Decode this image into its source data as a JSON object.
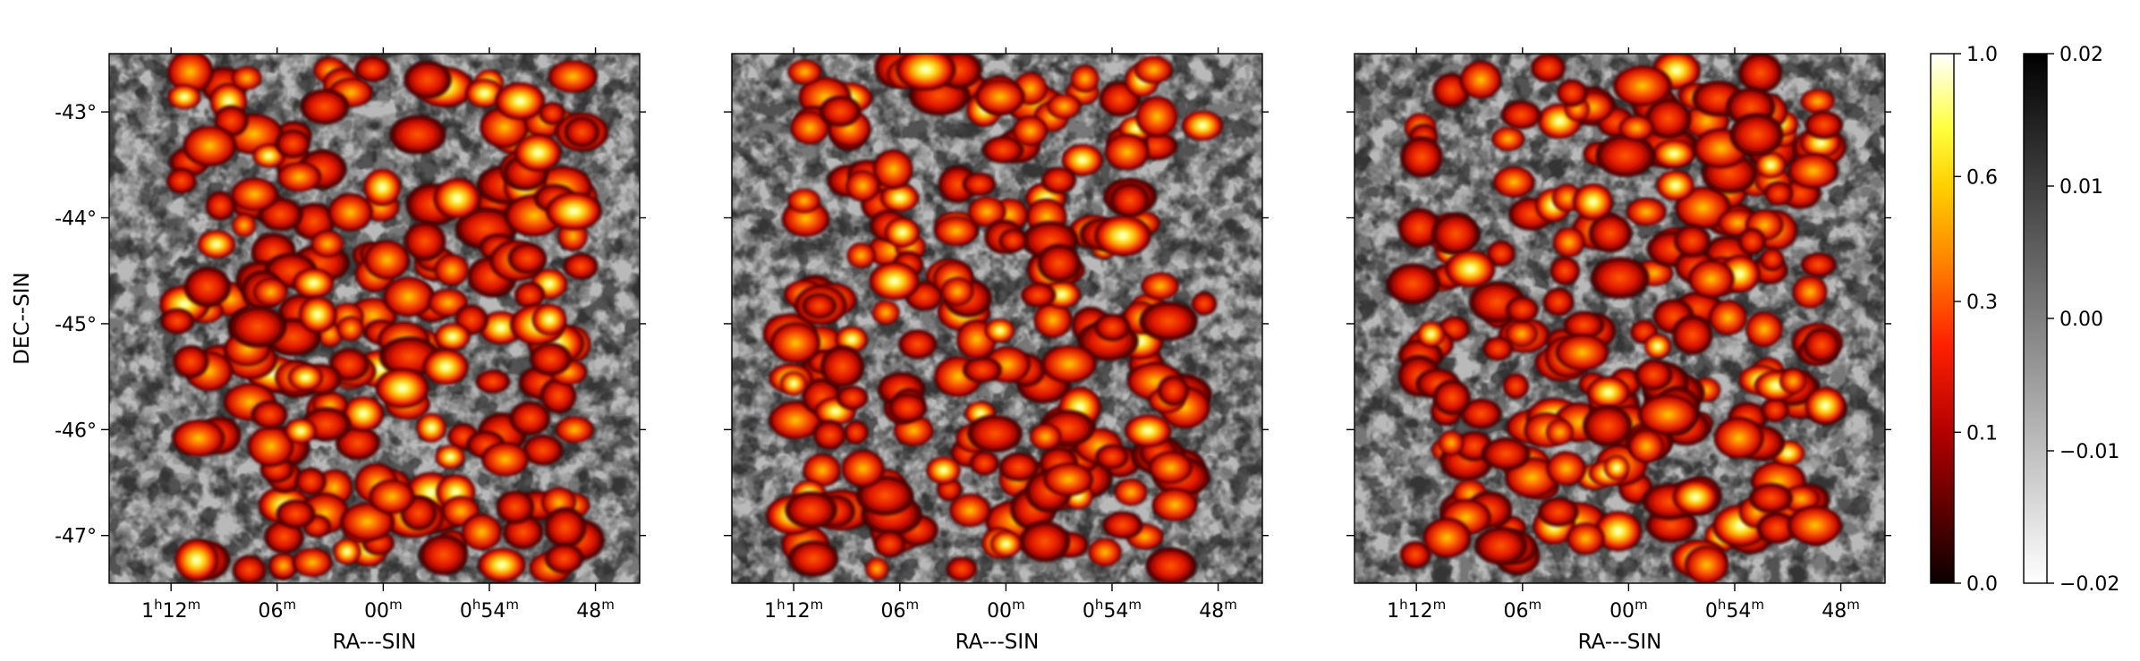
{
  "chart_data": [
    {
      "type": "heatmap",
      "panel": 1,
      "xlabel": "RA---SIN",
      "ylabel": "DEC--SIN",
      "x_ticks": [
        {
          "value": 72,
          "hour": "1",
          "min": "12",
          "h_sup": "h",
          "m_sup": "m"
        },
        {
          "value": 66,
          "hour": "",
          "min": "06",
          "h_sup": "",
          "m_sup": "m"
        },
        {
          "value": 60,
          "hour": "",
          "min": "00",
          "h_sup": "",
          "m_sup": "m"
        },
        {
          "value": 54,
          "hour": "0",
          "min": "54",
          "h_sup": "h",
          "m_sup": "m"
        },
        {
          "value": 48,
          "hour": "",
          "min": "48",
          "h_sup": "",
          "m_sup": "m"
        }
      ],
      "y_ticks": [
        {
          "value": -43,
          "label": "-43°"
        },
        {
          "value": -44,
          "label": "-44°"
        },
        {
          "value": -45,
          "label": "-45°"
        },
        {
          "value": -46,
          "label": "-46°"
        },
        {
          "value": -47,
          "label": "-47°"
        }
      ],
      "xlim_min": [
        75.5,
        45.5
      ],
      "ylim_deg": [
        -47.45,
        -42.45
      ],
      "show_yticklabels": true,
      "seed": 11
    },
    {
      "type": "heatmap",
      "panel": 2,
      "xlabel": "RA---SIN",
      "ylabel": "",
      "x_ticks": [
        {
          "value": 72,
          "hour": "1",
          "min": "12",
          "h_sup": "h",
          "m_sup": "m"
        },
        {
          "value": 66,
          "hour": "",
          "min": "06",
          "h_sup": "",
          "m_sup": "m"
        },
        {
          "value": 60,
          "hour": "",
          "min": "00",
          "h_sup": "",
          "m_sup": "m"
        },
        {
          "value": 54,
          "hour": "0",
          "min": "54",
          "h_sup": "h",
          "m_sup": "m"
        },
        {
          "value": 48,
          "hour": "",
          "min": "48",
          "h_sup": "",
          "m_sup": "m"
        }
      ],
      "y_ticks": [
        {
          "value": -43,
          "label": ""
        },
        {
          "value": -44,
          "label": ""
        },
        {
          "value": -45,
          "label": ""
        },
        {
          "value": -46,
          "label": ""
        },
        {
          "value": -47,
          "label": ""
        }
      ],
      "xlim_min": [
        75.5,
        45.5
      ],
      "ylim_deg": [
        -47.45,
        -42.45
      ],
      "show_yticklabels": false,
      "seed": 23
    },
    {
      "type": "heatmap",
      "panel": 3,
      "xlabel": "RA---SIN",
      "ylabel": "",
      "x_ticks": [
        {
          "value": 72,
          "hour": "1",
          "min": "12",
          "h_sup": "h",
          "m_sup": "m"
        },
        {
          "value": 66,
          "hour": "",
          "min": "06",
          "h_sup": "",
          "m_sup": "m"
        },
        {
          "value": 60,
          "hour": "",
          "min": "00",
          "h_sup": "",
          "m_sup": "m"
        },
        {
          "value": 54,
          "hour": "0",
          "min": "54",
          "h_sup": "h",
          "m_sup": "m"
        },
        {
          "value": 48,
          "hour": "",
          "min": "48",
          "h_sup": "",
          "m_sup": "m"
        }
      ],
      "y_ticks": [
        {
          "value": -43,
          "label": ""
        },
        {
          "value": -44,
          "label": ""
        },
        {
          "value": -45,
          "label": ""
        },
        {
          "value": -46,
          "label": ""
        },
        {
          "value": -47,
          "label": ""
        }
      ],
      "xlim_min": [
        75.5,
        45.5
      ],
      "ylim_deg": [
        -47.45,
        -42.45
      ],
      "show_yticklabels": false,
      "seed": 37
    }
  ],
  "colorbars": [
    {
      "name": "hot-colorbar",
      "colormap": "hot",
      "scale": "nonlinear",
      "ticks": [
        {
          "value": 0.0,
          "label": "0.0",
          "frac": 0.0
        },
        {
          "value": 0.1,
          "label": "0.1",
          "frac": 0.285
        },
        {
          "value": 0.3,
          "label": "0.3",
          "frac": 0.532
        },
        {
          "value": 0.6,
          "label": "0.6",
          "frac": 0.768
        },
        {
          "value": 1.0,
          "label": "1.0",
          "frac": 1.0
        }
      ]
    },
    {
      "name": "gray-colorbar",
      "colormap": "gray_r",
      "scale": "linear",
      "range": [
        -0.02,
        0.02
      ],
      "ticks": [
        {
          "value": -0.02,
          "label": "−0.02"
        },
        {
          "value": -0.01,
          "label": "−0.01"
        },
        {
          "value": 0.0,
          "label": "0.00"
        },
        {
          "value": 0.01,
          "label": "0.01"
        },
        {
          "value": 0.02,
          "label": "0.02"
        }
      ]
    }
  ],
  "colors": {
    "hot_low": "#0b0000",
    "hot_mid": "#e61a00",
    "hot_high": "#ffff80",
    "hot_top": "#ffffff",
    "gray_light": "#ffffff",
    "gray_dark": "#000000"
  }
}
